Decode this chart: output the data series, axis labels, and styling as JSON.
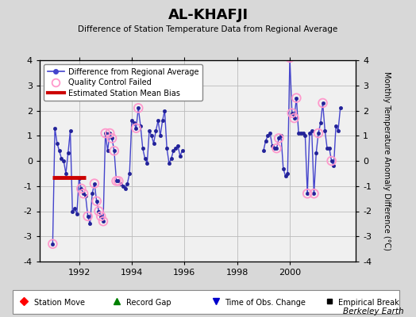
{
  "title": "AL-KHAFJI",
  "subtitle": "Difference of Station Temperature Data from Regional Average",
  "ylabel": "Monthly Temperature Anomaly Difference (°C)",
  "xlim": [
    1990.5,
    2002.5
  ],
  "ylim": [
    -4,
    4
  ],
  "background_color": "#d8d8d8",
  "plot_bg_color": "#f0f0f0",
  "line_color": "#4444cc",
  "qc_color": "#ff99cc",
  "bias_color": "#cc0000",
  "time_series": {
    "x": [
      1991.0,
      1991.083,
      1991.167,
      1991.25,
      1991.333,
      1991.417,
      1991.5,
      1991.583,
      1991.667,
      1991.75,
      1991.833,
      1991.917,
      1992.0,
      1992.083,
      1992.167,
      1992.25,
      1992.333,
      1992.417,
      1992.5,
      1992.583,
      1992.667,
      1992.75,
      1992.833,
      1992.917,
      1993.0,
      1993.083,
      1993.167,
      1993.25,
      1993.333,
      1993.417,
      1993.5,
      1993.583,
      1993.667,
      1993.75,
      1993.833,
      1993.917,
      1994.0,
      1994.083,
      1994.167,
      1994.25,
      1994.333,
      1994.417,
      1994.5,
      1994.583,
      1994.667,
      1994.75,
      1994.833,
      1994.917,
      1995.0,
      1995.083,
      1995.167,
      1995.25,
      1995.333,
      1995.417,
      1995.5,
      1995.583,
      1995.667,
      1995.75,
      1995.833,
      1995.917,
      1999.0,
      1999.083,
      1999.167,
      1999.25,
      1999.333,
      1999.417,
      1999.5,
      1999.583,
      1999.667,
      1999.75,
      1999.833,
      1999.917,
      2000.0,
      2000.083,
      2000.167,
      2000.25,
      2000.333,
      2000.417,
      2000.5,
      2000.583,
      2000.667,
      2000.75,
      2000.833,
      2000.917,
      2001.0,
      2001.083,
      2001.167,
      2001.25,
      2001.333,
      2001.417,
      2001.5,
      2001.583,
      2001.667,
      2001.75,
      2001.833,
      2001.917
    ],
    "y": [
      -3.3,
      1.3,
      0.7,
      0.4,
      0.1,
      0.0,
      -0.5,
      0.3,
      1.2,
      -2.0,
      -1.9,
      -2.1,
      -0.7,
      -1.1,
      -1.3,
      -1.4,
      -2.2,
      -2.5,
      -1.3,
      -0.9,
      -1.6,
      -2.0,
      -2.2,
      -2.4,
      1.1,
      0.4,
      1.1,
      0.9,
      0.4,
      -0.8,
      -0.8,
      -0.9,
      -1.0,
      -1.1,
      -0.9,
      -0.5,
      1.6,
      1.5,
      1.3,
      2.1,
      1.4,
      0.5,
      0.1,
      -0.1,
      1.2,
      1.0,
      0.7,
      1.2,
      1.6,
      1.0,
      1.6,
      2.0,
      0.5,
      -0.1,
      0.1,
      0.4,
      0.5,
      0.6,
      0.2,
      0.4,
      0.4,
      0.8,
      1.0,
      1.1,
      0.6,
      0.5,
      0.5,
      0.9,
      1.0,
      -0.3,
      -0.6,
      -0.5,
      4.1,
      1.9,
      1.7,
      2.5,
      1.1,
      1.1,
      1.1,
      1.0,
      -1.3,
      1.1,
      1.2,
      -1.3,
      0.3,
      1.1,
      1.5,
      2.3,
      1.2,
      0.5,
      0.5,
      0.0,
      -0.2,
      1.4,
      1.2,
      2.1
    ]
  },
  "qc_failed_x": [
    1991.0,
    1992.083,
    1992.167,
    1992.333,
    1992.583,
    1992.667,
    1992.75,
    1992.833,
    1992.917,
    1993.0,
    1993.167,
    1993.25,
    1993.333,
    1993.417,
    1993.5,
    1994.167,
    1994.25,
    1999.5,
    1999.583,
    2000.0,
    2000.083,
    2000.167,
    2000.25,
    2000.667,
    2000.917,
    2001.083,
    2001.25,
    2001.583
  ],
  "qc_failed_y": [
    -3.3,
    -1.1,
    -1.3,
    -2.2,
    -0.9,
    -1.6,
    -2.0,
    -2.2,
    -2.4,
    1.1,
    1.1,
    0.9,
    0.4,
    -0.8,
    -0.8,
    1.3,
    2.1,
    0.5,
    0.9,
    4.1,
    1.9,
    1.7,
    2.5,
    -1.3,
    -1.3,
    1.1,
    2.3,
    0.0
  ],
  "bias_x_start": 1991.0,
  "bias_x_end": 1992.25,
  "bias_y": -0.65,
  "gap_start": 1995.917,
  "gap_end": 1999.0,
  "xticks": [
    1992,
    1994,
    1996,
    1998,
    2000
  ],
  "yticks": [
    -4,
    -3,
    -2,
    -1,
    0,
    1,
    2,
    3,
    4
  ],
  "grid_color": "#bbbbbb",
  "station_move_x": 1991.0,
  "station_move_y": -3.3
}
